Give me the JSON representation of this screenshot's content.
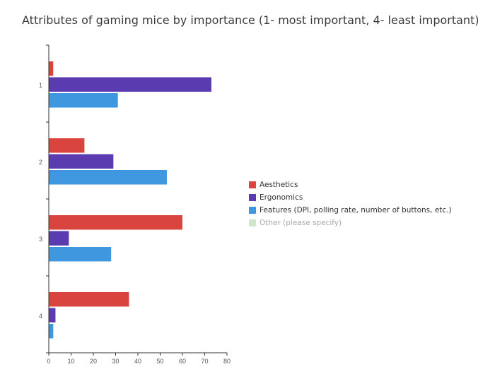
{
  "chart_data": {
    "type": "bar",
    "orientation": "horizontal",
    "title": "Attributes of gaming mice by importance (1- most important, 4- least important)",
    "categories": [
      "1",
      "2",
      "3",
      "4"
    ],
    "series": [
      {
        "name": "Aesthetics",
        "color": "#d9443f",
        "values": [
          2,
          16,
          60,
          36
        ]
      },
      {
        "name": "Ergonomics",
        "color": "#5b3bb0",
        "values": [
          73,
          29,
          9,
          3
        ]
      },
      {
        "name": "Features (DPI, polling rate, number of buttons, etc.)",
        "color": "#3f97df",
        "values": [
          31,
          53,
          28,
          2
        ]
      },
      {
        "name": "Other (please specify)",
        "color": "#cfe6c9",
        "values": [
          0,
          0,
          0,
          0
        ]
      }
    ],
    "xlim": [
      0,
      80
    ],
    "xticks": [
      "0",
      "10",
      "20",
      "30",
      "40",
      "50",
      "60",
      "70",
      "80"
    ],
    "grid": false,
    "legend_position": "right"
  }
}
